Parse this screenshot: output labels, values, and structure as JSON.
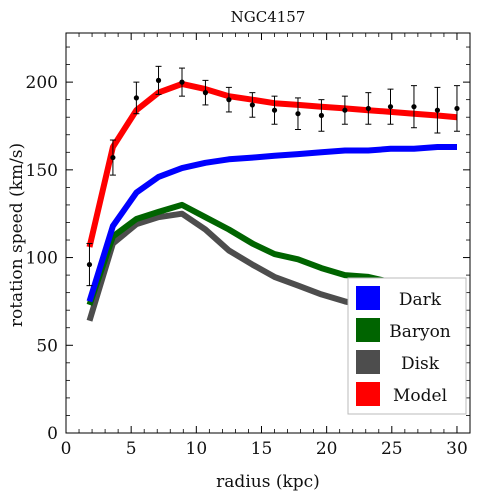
{
  "chart_data": {
    "type": "line",
    "title": "NGC4157",
    "xlabel": "radius (kpc)",
    "ylabel": "rotation speed (km/s)",
    "xlim": [
      0,
      31
    ],
    "ylim": [
      0,
      228
    ],
    "xticks": [
      0,
      5,
      10,
      15,
      20,
      25,
      30
    ],
    "yticks": [
      0,
      50,
      100,
      150,
      200
    ],
    "grid": false,
    "legend_position": "bottom-right",
    "series": [
      {
        "name": "Dark",
        "color": "#0000ff",
        "x": [
          1.8,
          3.6,
          5.4,
          7.1,
          8.9,
          10.7,
          12.5,
          14.3,
          16.0,
          17.8,
          19.6,
          21.4,
          23.2,
          24.9,
          26.7,
          28.5,
          30.0
        ],
        "y": [
          75,
          118,
          137,
          146,
          151,
          154,
          156,
          157,
          158,
          159,
          160,
          161,
          161,
          162,
          162,
          163,
          163
        ]
      },
      {
        "name": "Baryon",
        "color": "#006400",
        "x": [
          1.8,
          3.6,
          5.4,
          7.1,
          8.9,
          10.7,
          12.5,
          14.3,
          16.0,
          17.8,
          19.6,
          21.4,
          23.2,
          24.9,
          26.7,
          28.5,
          30.0
        ],
        "y": [
          73,
          112,
          122,
          126,
          130,
          123,
          116,
          108,
          102,
          99,
          94,
          90,
          89,
          86,
          83,
          80,
          77
        ]
      },
      {
        "name": "Disk",
        "color": "#4d4d4d",
        "x": [
          1.8,
          3.6,
          5.4,
          7.1,
          8.9,
          10.7,
          12.5,
          14.3,
          16.0,
          17.8,
          19.6,
          21.4,
          23.2,
          24.9,
          26.7,
          28.5,
          30.0
        ],
        "y": [
          64,
          108,
          119,
          123,
          125,
          116,
          104,
          96,
          89,
          84,
          79,
          75,
          72,
          69,
          66,
          64,
          62
        ]
      },
      {
        "name": "Model",
        "color": "#ff0000",
        "x": [
          1.8,
          3.6,
          5.4,
          7.1,
          8.9,
          10.7,
          12.5,
          14.3,
          16.0,
          17.8,
          19.6,
          21.4,
          23.2,
          24.9,
          26.7,
          28.5,
          30.0
        ],
        "y": [
          106,
          163,
          184,
          194,
          199,
          196,
          192,
          190,
          188,
          187,
          186,
          185,
          184,
          183,
          182,
          181,
          180
        ]
      }
    ],
    "observations": {
      "x": [
        1.8,
        3.6,
        5.4,
        7.1,
        8.9,
        10.7,
        12.5,
        14.3,
        16.0,
        17.8,
        19.6,
        21.4,
        23.2,
        24.9,
        26.7,
        28.5,
        30.0
      ],
      "y": [
        96,
        157,
        191,
        201,
        200,
        194,
        190,
        187,
        184,
        182,
        181,
        184,
        185,
        186,
        186,
        184,
        185
      ],
      "err": [
        12,
        10,
        9,
        8,
        8,
        7,
        7,
        7,
        8,
        9,
        9,
        8,
        9,
        10,
        12,
        13,
        13
      ]
    }
  }
}
